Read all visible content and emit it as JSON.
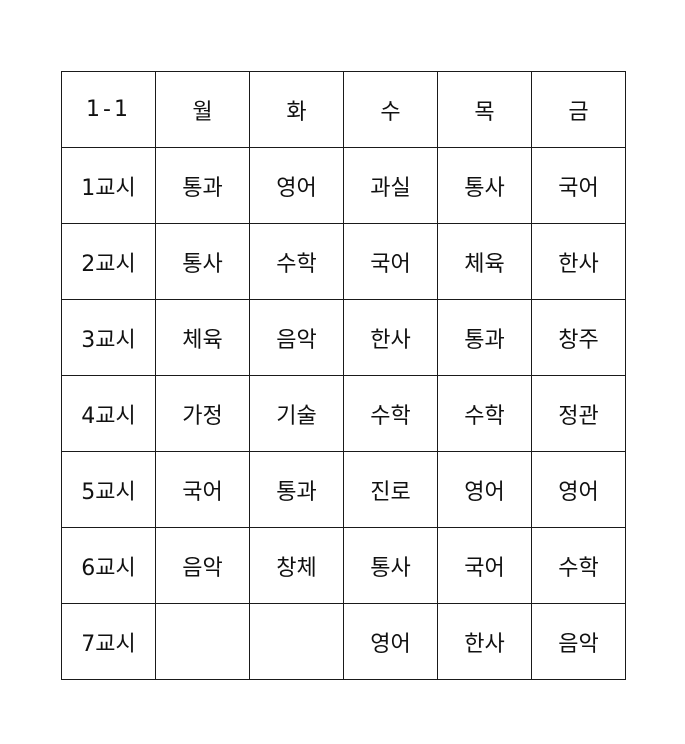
{
  "header": {
    "corner": "1-1",
    "days": [
      "월",
      "화",
      "수",
      "목",
      "금"
    ]
  },
  "rows": [
    {
      "period": "1교시",
      "cells": [
        "통과",
        "영어",
        "과실",
        "통사",
        "국어"
      ]
    },
    {
      "period": "2교시",
      "cells": [
        "통사",
        "수학",
        "국어",
        "체육",
        "한사"
      ]
    },
    {
      "period": "3교시",
      "cells": [
        "체육",
        "음악",
        "한사",
        "통과",
        "창주"
      ]
    },
    {
      "period": "4교시",
      "cells": [
        "가정",
        "기술",
        "수학",
        "수학",
        "정관"
      ]
    },
    {
      "period": "5교시",
      "cells": [
        "국어",
        "통과",
        "진로",
        "영어",
        "영어"
      ]
    },
    {
      "period": "6교시",
      "cells": [
        "음악",
        "창체",
        "통사",
        "국어",
        "수학"
      ]
    },
    {
      "period": "7교시",
      "cells": [
        "",
        "",
        "영어",
        "한사",
        "음악"
      ]
    }
  ]
}
